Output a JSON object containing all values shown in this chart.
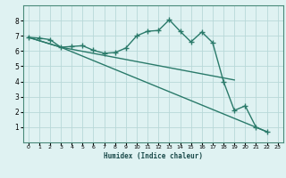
{
  "bg_color": "#dff2f2",
  "grid_color": "#b8d8d8",
  "line_color": "#2a7a6a",
  "line_width": 1.0,
  "marker": "+",
  "markersize": 4,
  "xlabel": "Humidex (Indice chaleur)",
  "xlim": [
    -0.5,
    23.5
  ],
  "ylim": [
    0,
    9
  ],
  "xticks": [
    0,
    1,
    2,
    3,
    4,
    5,
    6,
    7,
    8,
    9,
    10,
    11,
    12,
    13,
    14,
    15,
    16,
    17,
    18,
    19,
    20,
    21,
    22,
    23
  ],
  "yticks": [
    1,
    2,
    3,
    4,
    5,
    6,
    7,
    8
  ],
  "line1_x": [
    0,
    1,
    2,
    3,
    4,
    5,
    6,
    7,
    8,
    9,
    10,
    11,
    12,
    13,
    14,
    15,
    16,
    17,
    18,
    19,
    20,
    21,
    22
  ],
  "line1_y": [
    6.9,
    6.85,
    6.75,
    6.25,
    6.3,
    6.35,
    6.05,
    5.85,
    5.9,
    6.2,
    7.0,
    7.3,
    7.35,
    8.05,
    7.3,
    6.6,
    7.25,
    6.55,
    4.0,
    2.1,
    2.4,
    1.0,
    0.7
  ],
  "line2_x": [
    0,
    3,
    19
  ],
  "line2_y": [
    6.9,
    6.25,
    4.1
  ],
  "line3_x": [
    0,
    3,
    22
  ],
  "line3_y": [
    6.9,
    6.25,
    0.7
  ]
}
